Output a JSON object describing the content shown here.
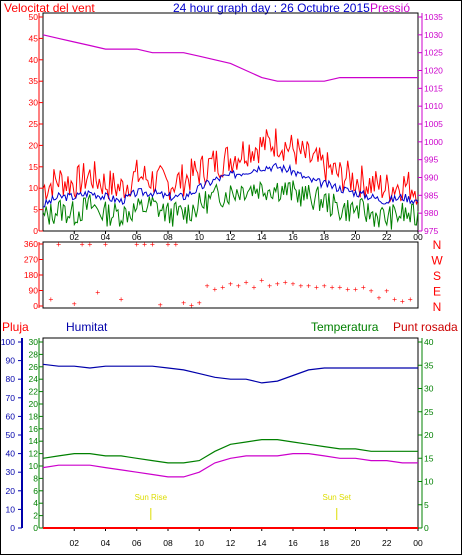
{
  "header": {
    "title": "24 hour graph day : 26 Octubre 2015",
    "wind_label": "Velocitat del vent",
    "pressure_label": "Pressió"
  },
  "lower_header": {
    "rain_label": "Pluja",
    "humidity_label": "Humitat",
    "temperature_label": "Temperatura",
    "dewpoint_label": "Punt rosada"
  },
  "annotations": {
    "sunrise": "Sun Rise",
    "sunset": "Sun Set"
  },
  "colors": {
    "wind_gust": "#ff0000",
    "wind_avg": "#0000cc",
    "wind_low": "#008000",
    "pressure": "#cc00cc",
    "direction": "#ff0000",
    "humidity": "#0000aa",
    "temperature": "#008000",
    "dewpoint": "#cc00cc",
    "rain": "#ff0000",
    "sun": "#dddd00",
    "frame": "#000000"
  },
  "chart_data": [
    {
      "type": "line",
      "x_ticks": [
        "02",
        "04",
        "06",
        "08",
        "10",
        "12",
        "14",
        "16",
        "18",
        "20",
        "22",
        "00"
      ],
      "y_left_label": "Velocitat del vent",
      "y_left_ticks": [
        "0",
        "5",
        "10",
        "15",
        "20",
        "25",
        "30",
        "35",
        "40",
        "45",
        "50"
      ],
      "ylim_left": [
        0,
        50
      ],
      "y_right_label": "Pressió",
      "y_right_ticks": [
        "975",
        "980",
        "985",
        "990",
        "995",
        "1000",
        "1005",
        "1010",
        "1015",
        "1020",
        "1025",
        "1030",
        "1035"
      ],
      "ylim_right": [
        975,
        1035
      ],
      "x": [
        0,
        1,
        2,
        3,
        4,
        5,
        6,
        7,
        8,
        9,
        10,
        11,
        12,
        13,
        14,
        15,
        16,
        17,
        18,
        19,
        20,
        21,
        22,
        23,
        24
      ],
      "series": [
        {
          "values": [
            10,
            12,
            11,
            13,
            11,
            10,
            13,
            12,
            11,
            12,
            14,
            16,
            17,
            19,
            20,
            21,
            19,
            17,
            15,
            13,
            12,
            11,
            10,
            11,
            10
          ]
        },
        {
          "values": [
            6,
            8,
            8,
            9,
            8,
            7,
            9,
            9,
            8,
            8,
            10,
            12,
            13,
            14,
            15,
            15,
            14,
            12,
            11,
            10,
            9,
            8,
            7,
            8,
            7
          ]
        },
        {
          "values": [
            3,
            5,
            4,
            6,
            4,
            4,
            5,
            6,
            4,
            4,
            6,
            8,
            9,
            10,
            10,
            10,
            9,
            8,
            7,
            5,
            5,
            4,
            3,
            4,
            3
          ]
        },
        {
          "name": "Pressió",
          "values": [
            1030,
            1029,
            1028,
            1027,
            1026,
            1026,
            1026,
            1025,
            1025,
            1025,
            1024,
            1023,
            1022,
            1020,
            1018,
            1017,
            1017,
            1017,
            1017,
            1018,
            1018,
            1018,
            1018,
            1018,
            1018
          ]
        }
      ]
    },
    {
      "type": "scatter",
      "x_ticks": [
        "02",
        "04",
        "06",
        "08",
        "10",
        "12",
        "14",
        "16",
        "18",
        "20",
        "22",
        "00"
      ],
      "y_left_ticks": [
        "0",
        "90",
        "180",
        "270",
        "360"
      ],
      "y_right_ticks": [
        "N",
        "W",
        "S",
        "E",
        "N"
      ],
      "ylim": [
        0,
        360
      ],
      "x": [
        0.5,
        1,
        2,
        2.5,
        3,
        3.5,
        4,
        5,
        6,
        6.5,
        7,
        7.5,
        8,
        8.5,
        9,
        9.5,
        10,
        10.5,
        11,
        11.5,
        12,
        12.5,
        13,
        13.5,
        14,
        14.5,
        15,
        15.5,
        16,
        16.5,
        17,
        17.5,
        18,
        18.5,
        19,
        19.5,
        20,
        20.5,
        21,
        21.5,
        22,
        22.5,
        23,
        23.5
      ],
      "values": [
        40,
        360,
        15,
        360,
        360,
        80,
        360,
        40,
        360,
        360,
        360,
        10,
        360,
        360,
        20,
        5,
        20,
        120,
        100,
        110,
        130,
        120,
        140,
        110,
        150,
        120,
        130,
        140,
        130,
        120,
        120,
        110,
        120,
        110,
        110,
        100,
        100,
        110,
        90,
        50,
        90,
        40,
        30,
        40
      ]
    },
    {
      "type": "line",
      "x_ticks": [
        "02",
        "04",
        "06",
        "08",
        "10",
        "12",
        "14",
        "16",
        "18",
        "20",
        "22",
        "00"
      ],
      "y_rain_ticks": [
        "0",
        "10",
        "20",
        "30",
        "40",
        "50",
        "60",
        "70",
        "80",
        "90",
        "100"
      ],
      "y_left_ticks": [
        "0",
        "2",
        "4",
        "6",
        "8",
        "10",
        "12",
        "14",
        "16",
        "18",
        "20",
        "22",
        "24",
        "26",
        "28",
        "30"
      ],
      "y_right_ticks": [
        "0",
        "5",
        "10",
        "15",
        "20",
        "25",
        "30",
        "35",
        "40"
      ],
      "ylim_humidity": [
        0,
        100
      ],
      "ylim_temperature": [
        0,
        40
      ],
      "x": [
        0,
        1,
        2,
        3,
        4,
        5,
        6,
        7,
        8,
        9,
        10,
        11,
        12,
        13,
        14,
        15,
        16,
        17,
        18,
        19,
        20,
        21,
        22,
        23,
        24
      ],
      "series": [
        {
          "name": "Humitat",
          "values": [
            88,
            87,
            87,
            86,
            87,
            87,
            87,
            87,
            86,
            85,
            83,
            81,
            80,
            80,
            78,
            79,
            82,
            85,
            86,
            86,
            86,
            86,
            86,
            86,
            86
          ]
        },
        {
          "name": "Temperatura",
          "values": [
            15,
            15.5,
            16,
            16,
            15.5,
            15.5,
            15,
            14.5,
            14,
            14,
            14.5,
            16.5,
            18,
            18.5,
            19,
            19,
            18.5,
            18,
            17.5,
            17,
            17,
            16.5,
            16.5,
            16.5,
            16.5
          ]
        },
        {
          "name": "Punt rosada",
          "values": [
            13,
            13.5,
            13.5,
            13.5,
            13,
            12.5,
            12,
            11.5,
            11,
            11,
            12,
            14,
            15,
            15.5,
            15.5,
            15.5,
            16,
            16,
            15.5,
            15,
            15,
            14.5,
            14.5,
            14,
            14
          ]
        },
        {
          "name": "Pluja",
          "values": [
            0,
            0,
            0,
            0,
            0,
            0,
            0,
            0,
            0,
            0,
            0,
            0,
            0,
            0,
            0,
            0,
            0,
            0,
            0,
            0,
            0,
            0,
            0,
            0,
            0
          ]
        }
      ],
      "sunrise_hour": 6.9,
      "sunset_hour": 18.8
    }
  ]
}
